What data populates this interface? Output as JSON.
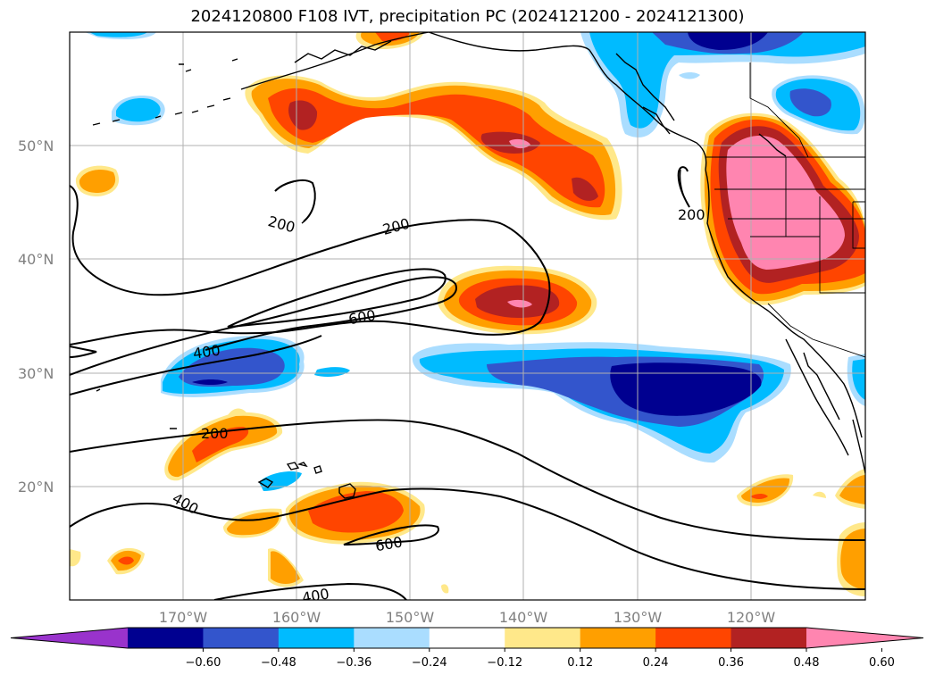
{
  "title": "2024120800 F108 IVT, precipitation PC (2024121200 - 2024121300)",
  "lat_labels": [
    "50°N",
    "40°N",
    "30°N",
    "20°N"
  ],
  "lon_labels": [
    "170°W",
    "160°W",
    "150°W",
    "140°W",
    "130°W",
    "120°W"
  ],
  "contour_labels": {
    "c200_a": "200",
    "c200_b": "200",
    "c200_c": "200",
    "c200_d": "200",
    "c400_a": "400",
    "c400_b": "400",
    "c400_c": "400",
    "c600_a": "600",
    "c600_b": "600"
  },
  "colorbar": {
    "ticks": [
      "−0.60",
      "−0.48",
      "−0.36",
      "−0.24",
      "−0.12",
      "0.12",
      "0.24",
      "0.36",
      "0.48",
      "0.60"
    ],
    "colors": [
      "#9933cc",
      "#000090",
      "#3355cc",
      "#00bbff",
      "#aaddff",
      "#ffffff",
      "#ffe88a",
      "#ff9f00",
      "#ff4500",
      "#b22222",
      "#ff85b0"
    ]
  }
}
